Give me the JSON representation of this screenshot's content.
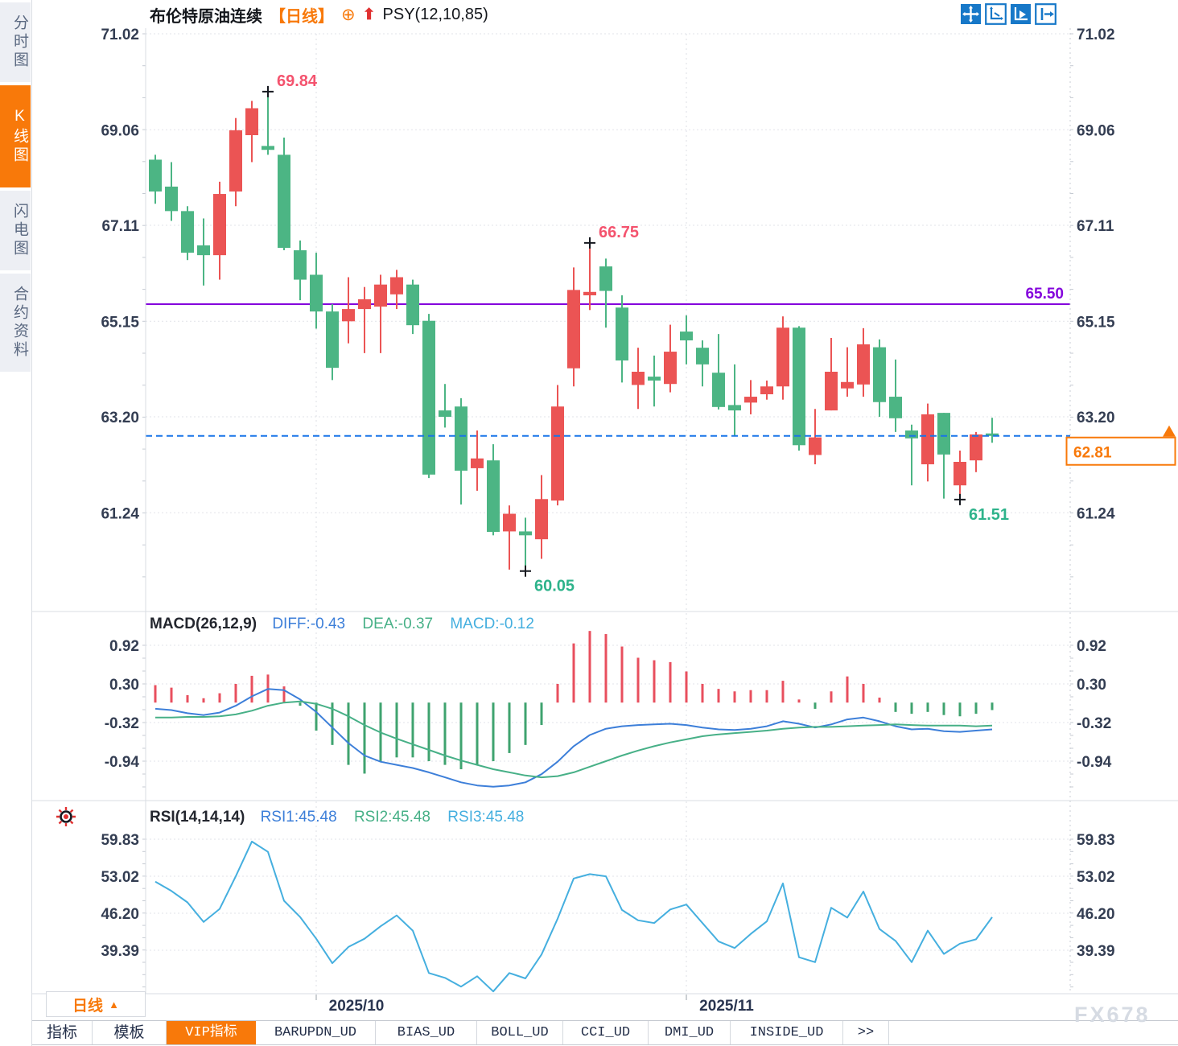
{
  "header": {
    "symbol": "布伦特原油连续",
    "period": "【日线】",
    "indicator": "PSY(12,10,85)",
    "icons": {
      "add": "⊕",
      "signal_up": "⬆"
    }
  },
  "sidebar": {
    "items": [
      {
        "label": "分时图",
        "active": false
      },
      {
        "label": "K线图",
        "active": true
      },
      {
        "label": "闪电图",
        "active": false
      },
      {
        "label": "合约资料",
        "active": false
      }
    ]
  },
  "toolbar": {
    "icons": [
      {
        "name": "pan-tool-icon",
        "active": true,
        "filled": true
      },
      {
        "name": "axis-zoom-icon",
        "active": false,
        "filled": false
      },
      {
        "name": "auto-scroll-icon",
        "active": true,
        "filled": true
      },
      {
        "name": "jump-to-latest-icon",
        "active": false,
        "filled": false
      }
    ]
  },
  "colors": {
    "up": "#EB5454",
    "down": "#4CB584",
    "accent_orange": "#F8790A",
    "purple_line": "#8405DC",
    "dashed_blue": "#1874E8",
    "diff_line": "#3D7FD9",
    "dea_line": "#47B087",
    "rsi_line": "#45AFDF",
    "hist_up": "#E84F5E",
    "hist_down": "#3FA36F",
    "marker_high_text": "#F4536E",
    "marker_low_text": "#2EB38B",
    "toolbar_blue": "#1778C8",
    "axis_text": "#333D52"
  },
  "chart_data": [
    {
      "type": "candlestick",
      "panel": "price",
      "title": "布伦特原油连续 日线",
      "y_ticks": [
        71.02,
        69.06,
        67.11,
        65.15,
        63.2,
        61.24
      ],
      "ylim": [
        59.2,
        71.1
      ],
      "grid": true,
      "ohlc": [
        [
          68.45,
          68.55,
          67.55,
          67.8
        ],
        [
          67.9,
          68.4,
          67.2,
          67.4
        ],
        [
          67.4,
          67.5,
          66.4,
          66.55
        ],
        [
          66.7,
          67.25,
          65.88,
          66.5
        ],
        [
          66.5,
          68.0,
          66.0,
          67.75
        ],
        [
          67.8,
          69.3,
          67.5,
          69.05
        ],
        [
          68.95,
          69.65,
          68.4,
          69.5
        ],
        [
          68.73,
          69.84,
          68.55,
          68.65
        ],
        [
          68.55,
          68.9,
          66.6,
          66.65
        ],
        [
          66.6,
          66.8,
          65.58,
          66.0
        ],
        [
          66.1,
          66.55,
          65.0,
          65.35
        ],
        [
          65.35,
          65.5,
          63.95,
          64.2
        ],
        [
          65.15,
          66.05,
          64.7,
          65.4
        ],
        [
          65.4,
          65.85,
          64.5,
          65.6
        ],
        [
          65.45,
          66.1,
          64.5,
          65.9
        ],
        [
          65.7,
          66.2,
          65.4,
          66.05
        ],
        [
          65.9,
          66.0,
          64.89,
          65.07
        ],
        [
          65.16,
          65.3,
          61.95,
          62.02
        ],
        [
          63.33,
          63.87,
          62.98,
          63.2
        ],
        [
          63.41,
          63.58,
          61.41,
          62.1
        ],
        [
          62.15,
          62.92,
          61.69,
          62.35
        ],
        [
          62.31,
          62.64,
          60.78,
          60.85
        ],
        [
          60.86,
          61.39,
          60.08,
          61.22
        ],
        [
          60.86,
          61.14,
          60.05,
          60.78
        ],
        [
          60.7,
          62.01,
          60.3,
          61.52
        ],
        [
          61.49,
          63.85,
          61.39,
          63.41
        ],
        [
          64.19,
          66.25,
          63.82,
          65.79
        ],
        [
          65.68,
          66.75,
          65.38,
          65.75
        ],
        [
          66.27,
          66.43,
          65.02,
          65.77
        ],
        [
          65.43,
          65.68,
          63.9,
          64.35
        ],
        [
          63.85,
          64.61,
          63.36,
          64.12
        ],
        [
          64.02,
          64.45,
          63.41,
          63.94
        ],
        [
          63.87,
          65.08,
          63.7,
          64.53
        ],
        [
          64.94,
          65.27,
          64.27,
          64.76
        ],
        [
          64.61,
          64.76,
          63.82,
          64.27
        ],
        [
          64.1,
          64.89,
          63.35,
          63.4
        ],
        [
          63.44,
          64.27,
          62.81,
          63.33
        ],
        [
          63.49,
          63.95,
          63.25,
          63.61
        ],
        [
          63.66,
          63.94,
          63.55,
          63.82
        ],
        [
          63.82,
          65.25,
          63.55,
          65.02
        ],
        [
          65.02,
          65.05,
          62.51,
          62.62
        ],
        [
          62.42,
          63.36,
          62.23,
          62.78
        ],
        [
          63.33,
          64.81,
          63.33,
          64.12
        ],
        [
          63.78,
          64.62,
          63.61,
          63.91
        ],
        [
          63.86,
          65.01,
          63.61,
          64.68
        ],
        [
          64.62,
          64.78,
          63.2,
          63.5
        ],
        [
          63.61,
          64.37,
          62.89,
          63.17
        ],
        [
          62.92,
          63.04,
          61.8,
          62.76
        ],
        [
          62.23,
          63.47,
          61.88,
          63.25
        ],
        [
          63.28,
          63.28,
          61.53,
          62.43
        ],
        [
          61.8,
          62.51,
          61.51,
          62.28
        ],
        [
          62.31,
          62.89,
          62.07,
          62.84
        ],
        [
          62.86,
          63.18,
          62.67,
          62.81
        ]
      ],
      "markers": [
        {
          "candle": 8,
          "price": 69.84,
          "label": "69.84",
          "type": "high"
        },
        {
          "candle": 28,
          "price": 66.75,
          "label": "66.75",
          "type": "high"
        },
        {
          "candle": 24,
          "price": 60.05,
          "label": "60.05",
          "type": "low"
        },
        {
          "candle": 51,
          "price": 61.51,
          "label": "61.51",
          "type": "low"
        }
      ],
      "hline": {
        "price": 65.5,
        "label": "65.50"
      },
      "current_price": {
        "value": 62.81,
        "display": "62.81"
      },
      "months": [
        {
          "label": "2025/10",
          "start_index": 11
        },
        {
          "label": "2025/11",
          "start_index": 34
        }
      ]
    },
    {
      "type": "macd",
      "label": "MACD(26,12,9)",
      "display": {
        "diff": "DIFF:-0.43",
        "dea": "DEA:-0.37",
        "macd": "MACD:-0.12"
      },
      "values": {
        "DIFF": -0.43,
        "DEA": -0.37,
        "MACD": -0.12
      },
      "y_ticks": [
        0.92,
        0.3,
        -0.32,
        -0.94
      ],
      "histogram": [
        0.28,
        0.24,
        0.12,
        0.07,
        0.15,
        0.3,
        0.43,
        0.45,
        0.26,
        -0.05,
        -0.45,
        -0.68,
        -1.0,
        -1.14,
        -0.94,
        -0.88,
        -0.88,
        -0.94,
        -1.0,
        -1.07,
        -1.0,
        -0.94,
        -0.81,
        -0.68,
        -0.36,
        0.3,
        0.95,
        1.15,
        1.1,
        0.9,
        0.72,
        0.68,
        0.65,
        0.5,
        0.3,
        0.22,
        0.18,
        0.2,
        0.2,
        0.35,
        0.05,
        -0.1,
        0.18,
        0.42,
        0.3,
        0.08,
        -0.15,
        -0.18,
        -0.15,
        -0.2,
        -0.22,
        -0.18,
        -0.12
      ],
      "diff": [
        -0.1,
        -0.12,
        -0.17,
        -0.2,
        -0.16,
        -0.05,
        0.1,
        0.22,
        0.2,
        0.05,
        -0.15,
        -0.4,
        -0.65,
        -0.85,
        -0.95,
        -1.0,
        -1.05,
        -1.12,
        -1.2,
        -1.28,
        -1.33,
        -1.35,
        -1.33,
        -1.28,
        -1.15,
        -0.95,
        -0.7,
        -0.52,
        -0.42,
        -0.38,
        -0.36,
        -0.35,
        -0.34,
        -0.36,
        -0.4,
        -0.43,
        -0.44,
        -0.42,
        -0.38,
        -0.3,
        -0.34,
        -0.4,
        -0.35,
        -0.27,
        -0.24,
        -0.3,
        -0.38,
        -0.43,
        -0.42,
        -0.46,
        -0.47,
        -0.45,
        -0.43
      ],
      "dea": [
        -0.24,
        -0.24,
        -0.23,
        -0.23,
        -0.22,
        -0.19,
        -0.13,
        -0.05,
        0.0,
        0.02,
        -0.02,
        -0.1,
        -0.22,
        -0.36,
        -0.48,
        -0.58,
        -0.67,
        -0.76,
        -0.85,
        -0.93,
        -1.0,
        -1.07,
        -1.12,
        -1.17,
        -1.2,
        -1.18,
        -1.12,
        -1.03,
        -0.94,
        -0.85,
        -0.77,
        -0.7,
        -0.64,
        -0.59,
        -0.54,
        -0.51,
        -0.49,
        -0.47,
        -0.45,
        -0.42,
        -0.4,
        -0.39,
        -0.39,
        -0.38,
        -0.37,
        -0.36,
        -0.35,
        -0.36,
        -0.37,
        -0.37,
        -0.37,
        -0.38,
        -0.37
      ]
    },
    {
      "type": "line",
      "label": "RSI(14,14,14)",
      "display": {
        "rsi1": "RSI1:45.48",
        "rsi2": "RSI2:45.48",
        "rsi3": "RSI3:45.48"
      },
      "values": {
        "RSI1": 45.48,
        "RSI2": 45.48,
        "RSI3": 45.48
      },
      "y_ticks": [
        59.83,
        53.02,
        46.2,
        39.39
      ],
      "rsi": [
        52.0,
        50.3,
        48.2,
        44.6,
        47.0,
        53.0,
        59.4,
        57.5,
        48.5,
        45.5,
        41.5,
        37.0,
        40.0,
        41.5,
        43.8,
        45.8,
        43.0,
        35.2,
        34.3,
        32.7,
        34.6,
        31.8,
        35.2,
        34.2,
        38.6,
        45.2,
        52.6,
        53.4,
        53.0,
        46.8,
        44.9,
        44.4,
        46.9,
        47.8,
        44.4,
        41.0,
        39.8,
        42.4,
        44.7,
        51.7,
        38.1,
        37.2,
        47.2,
        45.4,
        50.2,
        43.3,
        41.1,
        37.2,
        43.0,
        38.7,
        40.6,
        41.4,
        45.48
      ]
    }
  ],
  "date_axis": {
    "labels": [
      "2025/10",
      "2025/11"
    ],
    "period_label": "日线",
    "dropdown_icon": "▲"
  },
  "bottom_tabs": [
    {
      "label": "指标",
      "active": false
    },
    {
      "label": "模板",
      "active": false
    },
    {
      "label": "VIP指标",
      "active": true
    },
    {
      "label": "BARUPDN_UD",
      "active": false
    },
    {
      "label": "BIAS_UD",
      "active": false
    },
    {
      "label": "BOLL_UD",
      "active": false
    },
    {
      "label": "CCI_UD",
      "active": false
    },
    {
      "label": "DMI_UD",
      "active": false
    },
    {
      "label": "INSIDE_UD",
      "active": false
    },
    {
      "label": ">>",
      "active": false
    }
  ],
  "watermark": "FX678"
}
